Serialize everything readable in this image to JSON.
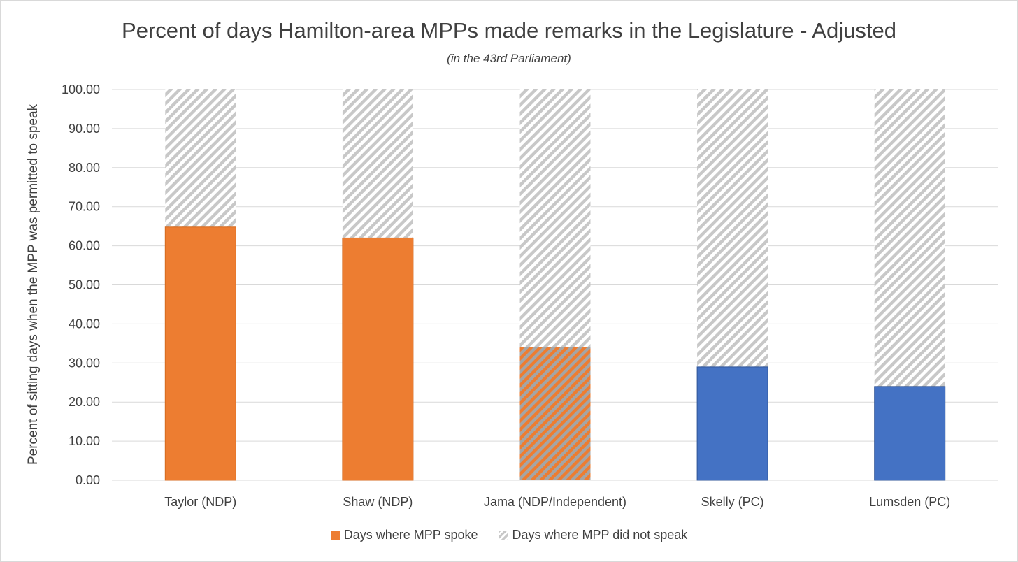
{
  "chart_data": {
    "type": "bar",
    "stacked": true,
    "title": "Percent of days Hamilton-area MPPs made remarks in the Legislature - Adjusted",
    "subtitle": "(in the 43rd Parliament)",
    "ylabel": "Percent of sitting days when the MPP was permitted to speak",
    "xlabel": "",
    "ylim": [
      0,
      100
    ],
    "yticks": [
      "0.00",
      "10.00",
      "20.00",
      "30.00",
      "40.00",
      "50.00",
      "60.00",
      "70.00",
      "80.00",
      "90.00",
      "100.00"
    ],
    "grid": true,
    "legend_position": "bottom",
    "categories": [
      "Taylor (NDP)",
      "Shaw (NDP)",
      "Jama (NDP/Independent)",
      "Skelly (PC)",
      "Lumsden (PC)"
    ],
    "series": [
      {
        "name": "Days where MPP spoke",
        "values": [
          64.8,
          62.0,
          34.0,
          29.0,
          24.0
        ],
        "bar_colors": [
          "#ed7d31",
          "#ed7d31",
          "#ed7d31",
          "#4472c4",
          "#4472c4"
        ],
        "hatched": [
          false,
          false,
          true,
          false,
          false
        ]
      },
      {
        "name": "Days where MPP did not speak",
        "values": [
          35.2,
          38.0,
          66.0,
          71.0,
          76.0
        ]
      }
    ]
  },
  "colors": {
    "ndp": "#ed7d31",
    "pc": "#4472c4",
    "hatch": "#c8c8c8",
    "grid": "#d9d9d9",
    "text": "#404040"
  }
}
